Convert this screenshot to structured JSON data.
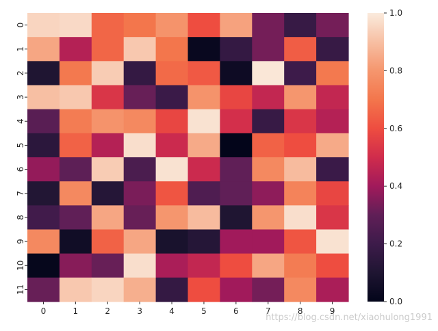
{
  "chart_data": {
    "type": "heatmap",
    "title": "",
    "xlabel": "",
    "ylabel": "",
    "x_categories": [
      "0",
      "1",
      "2",
      "3",
      "4",
      "5",
      "6",
      "7",
      "8",
      "9"
    ],
    "y_categories": [
      "0",
      "1",
      "2",
      "3",
      "4",
      "5",
      "6",
      "7",
      "8",
      "9",
      "10",
      "11"
    ],
    "values": [
      [
        0.95,
        0.96,
        0.66,
        0.7,
        0.79,
        0.6,
        0.83,
        0.33,
        0.18,
        0.33
      ],
      [
        0.84,
        0.44,
        0.66,
        0.92,
        0.7,
        0.02,
        0.17,
        0.33,
        0.64,
        0.18
      ],
      [
        0.1,
        0.71,
        0.93,
        0.17,
        0.67,
        0.63,
        0.04,
        0.99,
        0.2,
        0.71
      ],
      [
        0.9,
        0.92,
        0.53,
        0.31,
        0.19,
        0.79,
        0.58,
        0.47,
        0.8,
        0.47
      ],
      [
        0.28,
        0.72,
        0.79,
        0.76,
        0.58,
        0.98,
        0.51,
        0.18,
        0.53,
        0.44
      ],
      [
        0.14,
        0.65,
        0.44,
        0.97,
        0.49,
        0.85,
        0.0,
        0.65,
        0.6,
        0.85
      ],
      [
        0.38,
        0.29,
        0.93,
        0.24,
        0.98,
        0.49,
        0.3,
        0.76,
        0.89,
        0.19
      ],
      [
        0.11,
        0.76,
        0.12,
        0.34,
        0.62,
        0.25,
        0.3,
        0.37,
        0.74,
        0.58
      ],
      [
        0.21,
        0.3,
        0.84,
        0.31,
        0.8,
        0.89,
        0.1,
        0.8,
        0.97,
        0.53
      ],
      [
        0.76,
        0.05,
        0.65,
        0.84,
        0.08,
        0.12,
        0.4,
        0.4,
        0.62,
        0.98
      ],
      [
        0.01,
        0.36,
        0.31,
        0.97,
        0.42,
        0.47,
        0.6,
        0.84,
        0.72,
        0.6
      ],
      [
        0.31,
        0.92,
        0.95,
        0.86,
        0.17,
        0.6,
        0.4,
        0.33,
        0.76,
        0.42
      ]
    ],
    "colorbar": {
      "ticks": [
        "0.0",
        "0.2",
        "0.4",
        "0.6",
        "0.8",
        "1.0"
      ],
      "tick_values": [
        0.0,
        0.2,
        0.4,
        0.6,
        0.8,
        1.0
      ],
      "range": [
        0.0,
        1.0
      ],
      "colormap": "rocket"
    }
  },
  "watermark": "https://blog.csdn.net/xiaohulong1991"
}
